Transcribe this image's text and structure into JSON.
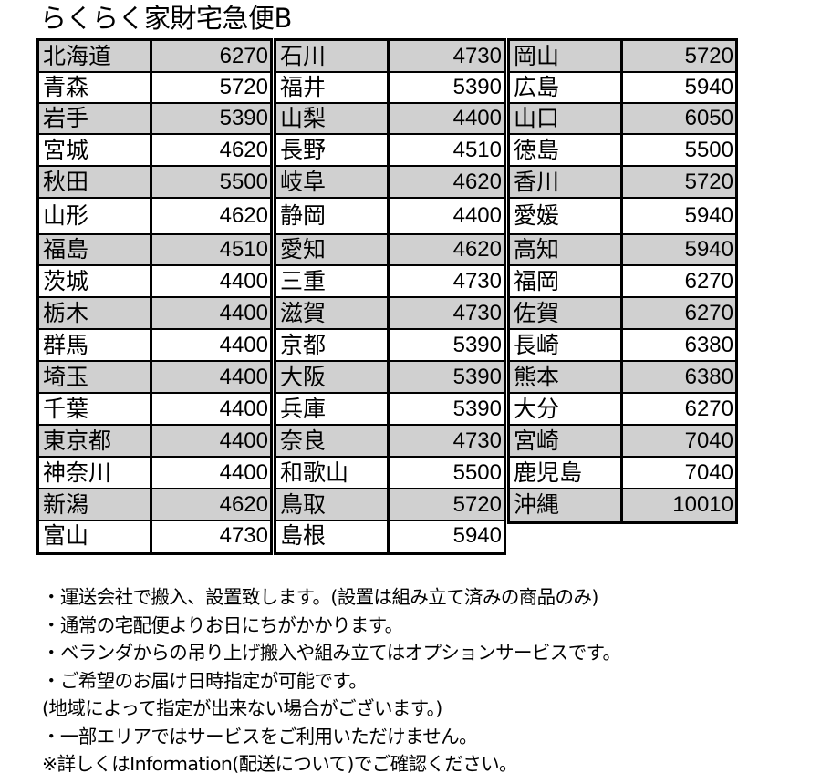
{
  "title": "らくらく家財宅急便B",
  "rate_groups": [
    [
      {
        "pref": "北海道",
        "price": "6270"
      },
      {
        "pref": "青森",
        "price": "5720"
      },
      {
        "pref": "岩手",
        "price": "5390"
      },
      {
        "pref": "宮城",
        "price": "4620"
      },
      {
        "pref": "秋田",
        "price": "5500"
      },
      {
        "pref": "山形",
        "price": "4620"
      },
      {
        "pref": "福島",
        "price": "4510"
      },
      {
        "pref": "茨城",
        "price": "4400"
      },
      {
        "pref": "栃木",
        "price": "4400"
      },
      {
        "pref": "群馬",
        "price": "4400"
      },
      {
        "pref": "埼玉",
        "price": "4400"
      },
      {
        "pref": "千葉",
        "price": "4400"
      },
      {
        "pref": "東京都",
        "price": "4400"
      },
      {
        "pref": "神奈川",
        "price": "4400"
      },
      {
        "pref": "新潟",
        "price": "4620"
      },
      {
        "pref": "富山",
        "price": "4730"
      }
    ],
    [
      {
        "pref": "石川",
        "price": "4730"
      },
      {
        "pref": "福井",
        "price": "5390"
      },
      {
        "pref": "山梨",
        "price": "4400"
      },
      {
        "pref": "長野",
        "price": "4510"
      },
      {
        "pref": "岐阜",
        "price": "4620"
      },
      {
        "pref": "静岡",
        "price": "4400"
      },
      {
        "pref": "愛知",
        "price": "4620"
      },
      {
        "pref": "三重",
        "price": "4730"
      },
      {
        "pref": "滋賀",
        "price": "4730"
      },
      {
        "pref": "京都",
        "price": "5390"
      },
      {
        "pref": "大阪",
        "price": "5390"
      },
      {
        "pref": "兵庫",
        "price": "5390"
      },
      {
        "pref": "奈良",
        "price": "4730"
      },
      {
        "pref": "和歌山",
        "price": "5500"
      },
      {
        "pref": "鳥取",
        "price": "5720"
      },
      {
        "pref": "島根",
        "price": "5940"
      }
    ],
    [
      {
        "pref": "岡山",
        "price": "5720"
      },
      {
        "pref": "広島",
        "price": "5940"
      },
      {
        "pref": "山口",
        "price": "6050"
      },
      {
        "pref": "徳島",
        "price": "5500"
      },
      {
        "pref": "香川",
        "price": "5720"
      },
      {
        "pref": "愛媛",
        "price": "5940"
      },
      {
        "pref": "高知",
        "price": "5940"
      },
      {
        "pref": "福岡",
        "price": "6270"
      },
      {
        "pref": "佐賀",
        "price": "6270"
      },
      {
        "pref": "長崎",
        "price": "6380"
      },
      {
        "pref": "熊本",
        "price": "6380"
      },
      {
        "pref": "大分",
        "price": "6270"
      },
      {
        "pref": "宮崎",
        "price": "7040"
      },
      {
        "pref": "鹿児島",
        "price": "7040"
      },
      {
        "pref": "沖縄",
        "price": "10010"
      }
    ]
  ],
  "notes": [
    "・運送会社で搬入、設置致します。(設置は組み立て済みの商品のみ)",
    "・通常の宅配便よりお日にちがかかります。",
    "・ベランダからの吊り上げ搬入や組み立てはオプションサービスです。",
    "・ご希望のお届け日時指定が可能です。",
    "(地域によって指定が出来ない場合がございます。)",
    "・一部エリアではサービスをご利用いただけません。",
    "※詳しくはInformation(配送について)でご確認ください。"
  ],
  "colors": {
    "shaded_row": "#d0d0d0",
    "border": "#000000"
  }
}
